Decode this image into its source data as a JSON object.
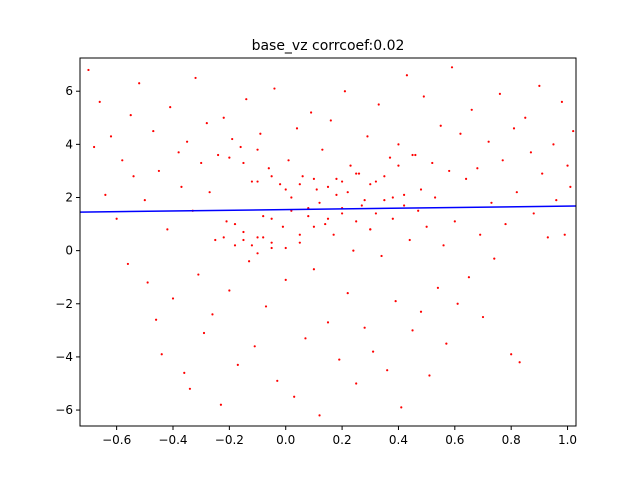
{
  "chart_data": {
    "type": "scatter",
    "title": "base_vz corrcoef:0.02",
    "xlabel": "",
    "ylabel": "",
    "xlim": [
      -0.73,
      1.03
    ],
    "ylim": [
      -6.6,
      7.25
    ],
    "xticks": [
      -0.6,
      -0.4,
      -0.2,
      0.0,
      0.2,
      0.4,
      0.6,
      0.8,
      1.0
    ],
    "xtick_labels": [
      "−0.6",
      "−0.4",
      "−0.2",
      "0.0",
      "0.2",
      "0.4",
      "0.6",
      "0.8",
      "1.0"
    ],
    "yticks": [
      -6,
      -4,
      -2,
      0,
      2,
      4,
      6
    ],
    "ytick_labels": [
      "−6",
      "−4",
      "−2",
      "0",
      "2",
      "4",
      "6"
    ],
    "grid": false,
    "colors": {
      "points": "#ff0000",
      "fit_line": "#0000ff"
    },
    "fit_line": {
      "x": [
        -0.73,
        1.03
      ],
      "y": [
        1.45,
        1.68
      ]
    },
    "series": [
      {
        "values": [
          [
            -0.7,
            6.8
          ],
          [
            -0.68,
            3.9
          ],
          [
            -0.66,
            5.6
          ],
          [
            -0.64,
            2.1
          ],
          [
            -0.62,
            4.3
          ],
          [
            -0.6,
            1.2
          ],
          [
            -0.58,
            3.4
          ],
          [
            -0.56,
            -0.5
          ],
          [
            -0.55,
            5.1
          ],
          [
            -0.54,
            2.8
          ],
          [
            -0.52,
            6.3
          ],
          [
            -0.5,
            1.9
          ],
          [
            -0.49,
            -1.2
          ],
          [
            -0.47,
            4.5
          ],
          [
            -0.46,
            -2.6
          ],
          [
            -0.45,
            3.0
          ],
          [
            -0.44,
            -3.9
          ],
          [
            -0.42,
            0.8
          ],
          [
            -0.41,
            5.4
          ],
          [
            -0.4,
            -1.8
          ],
          [
            -0.38,
            3.7
          ],
          [
            -0.37,
            2.4
          ],
          [
            -0.36,
            -4.6
          ],
          [
            -0.35,
            4.1
          ],
          [
            -0.34,
            -5.2
          ],
          [
            -0.33,
            1.5
          ],
          [
            -0.32,
            6.5
          ],
          [
            -0.31,
            -0.9
          ],
          [
            -0.3,
            3.3
          ],
          [
            -0.29,
            -3.1
          ],
          [
            -0.28,
            4.8
          ],
          [
            -0.27,
            2.2
          ],
          [
            -0.26,
            -2.4
          ],
          [
            -0.25,
            0.4
          ],
          [
            -0.24,
            3.6
          ],
          [
            -0.23,
            -5.8
          ],
          [
            -0.22,
            5.0
          ],
          [
            -0.21,
            1.1
          ],
          [
            -0.2,
            -1.5
          ],
          [
            -0.19,
            4.2
          ],
          [
            -0.18,
            0.2
          ],
          [
            -0.17,
            -4.3
          ],
          [
            -0.16,
            3.9
          ],
          [
            -0.15,
            0.7
          ],
          [
            -0.14,
            5.7
          ],
          [
            -0.13,
            -0.4
          ],
          [
            -0.12,
            2.6
          ],
          [
            -0.11,
            -3.6
          ],
          [
            -0.1,
            0.5
          ],
          [
            -0.09,
            4.4
          ],
          [
            -0.08,
            1.3
          ],
          [
            -0.07,
            -2.1
          ],
          [
            -0.06,
            3.1
          ],
          [
            -0.05,
            0.1
          ],
          [
            -0.04,
            6.1
          ],
          [
            -0.03,
            -4.9
          ],
          [
            -0.02,
            2.5
          ],
          [
            -0.01,
            0.9
          ],
          [
            0.0,
            -1.1
          ],
          [
            0.01,
            3.4
          ],
          [
            0.02,
            2.0
          ],
          [
            0.03,
            -5.5
          ],
          [
            0.04,
            4.6
          ],
          [
            0.05,
            0.3
          ],
          [
            0.06,
            2.8
          ],
          [
            0.07,
            -3.3
          ],
          [
            0.08,
            1.6
          ],
          [
            0.09,
            5.2
          ],
          [
            0.1,
            -0.7
          ],
          [
            0.11,
            2.3
          ],
          [
            0.12,
            -6.2
          ],
          [
            0.13,
            3.8
          ],
          [
            0.14,
            1.0
          ],
          [
            0.15,
            -2.7
          ],
          [
            0.16,
            4.9
          ],
          [
            0.17,
            0.6
          ],
          [
            0.18,
            2.7
          ],
          [
            0.19,
            -4.1
          ],
          [
            0.2,
            1.4
          ],
          [
            0.21,
            6.0
          ],
          [
            0.22,
            -1.6
          ],
          [
            0.23,
            3.2
          ],
          [
            0.24,
            0.0
          ],
          [
            0.25,
            -5.0
          ],
          [
            0.26,
            2.9
          ],
          [
            0.27,
            1.7
          ],
          [
            0.28,
            -2.9
          ],
          [
            0.29,
            4.3
          ],
          [
            0.3,
            0.8
          ],
          [
            0.31,
            -3.8
          ],
          [
            0.32,
            2.6
          ],
          [
            0.33,
            5.5
          ],
          [
            0.34,
            -0.2
          ],
          [
            0.35,
            1.9
          ],
          [
            0.36,
            -4.5
          ],
          [
            0.37,
            3.5
          ],
          [
            0.38,
            1.2
          ],
          [
            0.39,
            -1.9
          ],
          [
            0.4,
            4.0
          ],
          [
            0.41,
            -5.9
          ],
          [
            0.42,
            2.1
          ],
          [
            0.43,
            6.6
          ],
          [
            0.44,
            0.4
          ],
          [
            0.45,
            -3.0
          ],
          [
            0.46,
            3.6
          ],
          [
            0.47,
            1.5
          ],
          [
            0.48,
            -2.3
          ],
          [
            0.49,
            5.8
          ],
          [
            0.5,
            0.9
          ],
          [
            0.51,
            -4.7
          ],
          [
            0.52,
            3.3
          ],
          [
            0.53,
            2.0
          ],
          [
            0.54,
            -1.4
          ],
          [
            0.55,
            4.7
          ],
          [
            0.56,
            0.2
          ],
          [
            0.57,
            -3.5
          ],
          [
            0.58,
            3.0
          ],
          [
            0.59,
            6.9
          ],
          [
            0.6,
            1.1
          ],
          [
            0.61,
            -2.0
          ],
          [
            0.62,
            4.4
          ],
          [
            0.64,
            2.7
          ],
          [
            0.65,
            -1.0
          ],
          [
            0.66,
            5.3
          ],
          [
            0.68,
            3.1
          ],
          [
            0.69,
            0.6
          ],
          [
            0.7,
            -2.5
          ],
          [
            0.72,
            4.1
          ],
          [
            0.73,
            1.8
          ],
          [
            0.74,
            -0.3
          ],
          [
            0.76,
            5.9
          ],
          [
            0.77,
            3.4
          ],
          [
            0.78,
            1.0
          ],
          [
            0.8,
            -3.9
          ],
          [
            0.81,
            4.6
          ],
          [
            0.82,
            2.2
          ],
          [
            0.83,
            -4.2
          ],
          [
            0.85,
            5.0
          ],
          [
            0.87,
            3.7
          ],
          [
            0.88,
            1.4
          ],
          [
            0.9,
            6.2
          ],
          [
            0.91,
            2.9
          ],
          [
            0.93,
            0.5
          ],
          [
            0.95,
            4.0
          ],
          [
            0.96,
            1.9
          ],
          [
            0.98,
            5.6
          ],
          [
            0.99,
            0.6
          ],
          [
            1.0,
            3.2
          ],
          [
            1.01,
            2.4
          ],
          [
            1.02,
            4.5
          ],
          [
            -0.15,
            0.4
          ],
          [
            -0.12,
            0.2
          ],
          [
            -0.1,
            -0.1
          ],
          [
            -0.08,
            0.5
          ],
          [
            -0.05,
            0.3
          ],
          [
            0.0,
            0.1
          ],
          [
            0.05,
            0.6
          ],
          [
            0.1,
            0.9
          ],
          [
            0.15,
            1.2
          ],
          [
            0.2,
            1.6
          ],
          [
            0.25,
            1.1
          ],
          [
            0.3,
            0.8
          ],
          [
            -0.1,
            2.6
          ],
          [
            -0.05,
            2.8
          ],
          [
            0.0,
            2.3
          ],
          [
            0.05,
            2.5
          ],
          [
            0.1,
            2.7
          ],
          [
            0.15,
            2.4
          ],
          [
            0.2,
            2.6
          ],
          [
            0.25,
            2.9
          ],
          [
            0.3,
            2.5
          ],
          [
            0.35,
            2.8
          ],
          [
            -0.2,
            3.5
          ],
          [
            -0.15,
            3.3
          ],
          [
            -0.1,
            3.8
          ],
          [
            0.4,
            3.2
          ],
          [
            0.45,
            3.6
          ],
          [
            -0.05,
            1.2
          ],
          [
            0.02,
            1.5
          ],
          [
            0.08,
            1.3
          ],
          [
            0.12,
            1.8
          ],
          [
            0.18,
            2.1
          ],
          [
            0.22,
            2.2
          ],
          [
            0.28,
            1.9
          ],
          [
            0.32,
            1.4
          ],
          [
            -0.18,
            1.0
          ],
          [
            -0.22,
            0.5
          ],
          [
            0.38,
            2.0
          ],
          [
            0.42,
            1.7
          ],
          [
            0.48,
            2.3
          ]
        ]
      }
    ]
  }
}
